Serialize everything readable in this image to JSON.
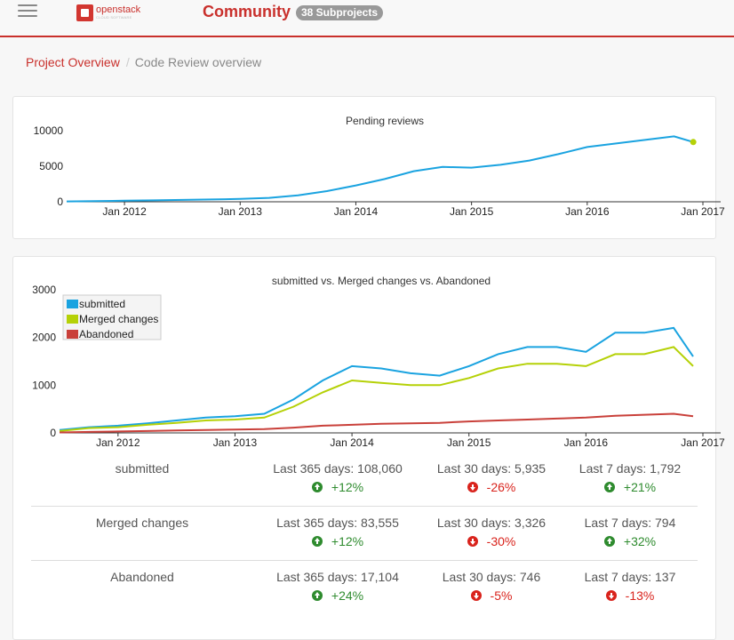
{
  "header": {
    "brand": "openstack",
    "brand_sub": "CLOUD SOFTWARE",
    "title": "Community",
    "badge": "38 Subprojects"
  },
  "breadcrumb": {
    "items": [
      "Project Overview",
      "Code Review overview"
    ]
  },
  "colors": {
    "accent": "#c9302c",
    "submitted": "#1aa3e0",
    "merged": "#b5d107",
    "abandoned": "#c9403a"
  },
  "chart_data": [
    {
      "type": "line",
      "title": "Pending reviews",
      "x_ticks": [
        "Jan 2012",
        "Jan 2013",
        "Jan 2014",
        "Jan 2015",
        "Jan 2016",
        "Jan 2017"
      ],
      "y_ticks": [
        "0",
        "5000",
        "10000"
      ],
      "ylim": [
        0,
        10000
      ],
      "xlim": [
        "2011-07",
        "2017-01"
      ],
      "series": [
        {
          "color": "#1aa3e0",
          "x": [
            "2011-07",
            "2011-10",
            "2012-01",
            "2012-04",
            "2012-07",
            "2012-10",
            "2013-01",
            "2013-04",
            "2013-07",
            "2013-10",
            "2014-01",
            "2014-04",
            "2014-07",
            "2014-10",
            "2015-01",
            "2015-04",
            "2015-07",
            "2015-10",
            "2016-01",
            "2016-04",
            "2016-07",
            "2016-10",
            "2016-12"
          ],
          "values": [
            50,
            90,
            150,
            200,
            260,
            320,
            400,
            550,
            900,
            1500,
            2300,
            3200,
            4300,
            4900,
            4800,
            5200,
            5800,
            6700,
            7700,
            8200,
            8700,
            9200,
            8400
          ]
        }
      ],
      "grid": false,
      "legend": "none"
    },
    {
      "type": "line",
      "title": "submitted vs. Merged changes vs. Abandoned",
      "x_ticks": [
        "Jan 2012",
        "Jan 2013",
        "Jan 2014",
        "Jan 2015",
        "Jan 2016",
        "Jan 2017"
      ],
      "y_ticks": [
        "0",
        "1000",
        "2000",
        "3000"
      ],
      "ylim": [
        0,
        3000
      ],
      "xlim": [
        "2011-07",
        "2017-01"
      ],
      "legend": "top-left",
      "x": [
        "2011-07",
        "2011-10",
        "2012-01",
        "2012-04",
        "2012-07",
        "2012-10",
        "2013-01",
        "2013-04",
        "2013-07",
        "2013-10",
        "2014-01",
        "2014-04",
        "2014-07",
        "2014-10",
        "2015-01",
        "2015-04",
        "2015-07",
        "2015-10",
        "2016-01",
        "2016-04",
        "2016-07",
        "2016-10",
        "2016-12"
      ],
      "series": [
        {
          "name": "submitted",
          "color": "#1aa3e0",
          "values": [
            60,
            120,
            150,
            200,
            260,
            320,
            350,
            400,
            700,
            1100,
            1400,
            1350,
            1250,
            1200,
            1400,
            1650,
            1800,
            1800,
            1700,
            2100,
            2100,
            2200,
            1600
          ]
        },
        {
          "name": "Merged changes",
          "color": "#b5d107",
          "values": [
            40,
            100,
            120,
            170,
            210,
            260,
            280,
            320,
            550,
            850,
            1100,
            1050,
            1000,
            1000,
            1150,
            1350,
            1450,
            1450,
            1400,
            1650,
            1650,
            1800,
            1400
          ]
        },
        {
          "name": "Abandoned",
          "color": "#c9403a",
          "values": [
            10,
            20,
            30,
            40,
            50,
            60,
            70,
            80,
            110,
            150,
            170,
            190,
            200,
            210,
            240,
            260,
            280,
            300,
            320,
            360,
            380,
            400,
            350
          ]
        }
      ],
      "grid": false
    }
  ],
  "stats": [
    {
      "label": "submitted",
      "y365": "Last 365 days: 108,060",
      "c365": "+12%",
      "d365": "up",
      "y30": "Last 30 days: 5,935",
      "c30": "-26%",
      "d30": "down",
      "y7": "Last 7 days: 1,792",
      "c7": "+21%",
      "d7": "up"
    },
    {
      "label": "Merged changes",
      "y365": "Last 365 days: 83,555",
      "c365": "+12%",
      "d365": "up",
      "y30": "Last 30 days: 3,326",
      "c30": "-30%",
      "d30": "down",
      "y7": "Last 7 days: 794",
      "c7": "+32%",
      "d7": "up"
    },
    {
      "label": "Abandoned",
      "y365": "Last 365 days: 17,104",
      "c365": "+24%",
      "d365": "up",
      "y30": "Last 30 days: 746",
      "c30": "-5%",
      "d30": "down",
      "y7": "Last 7 days: 137",
      "c7": "-13%",
      "d7": "down"
    }
  ]
}
